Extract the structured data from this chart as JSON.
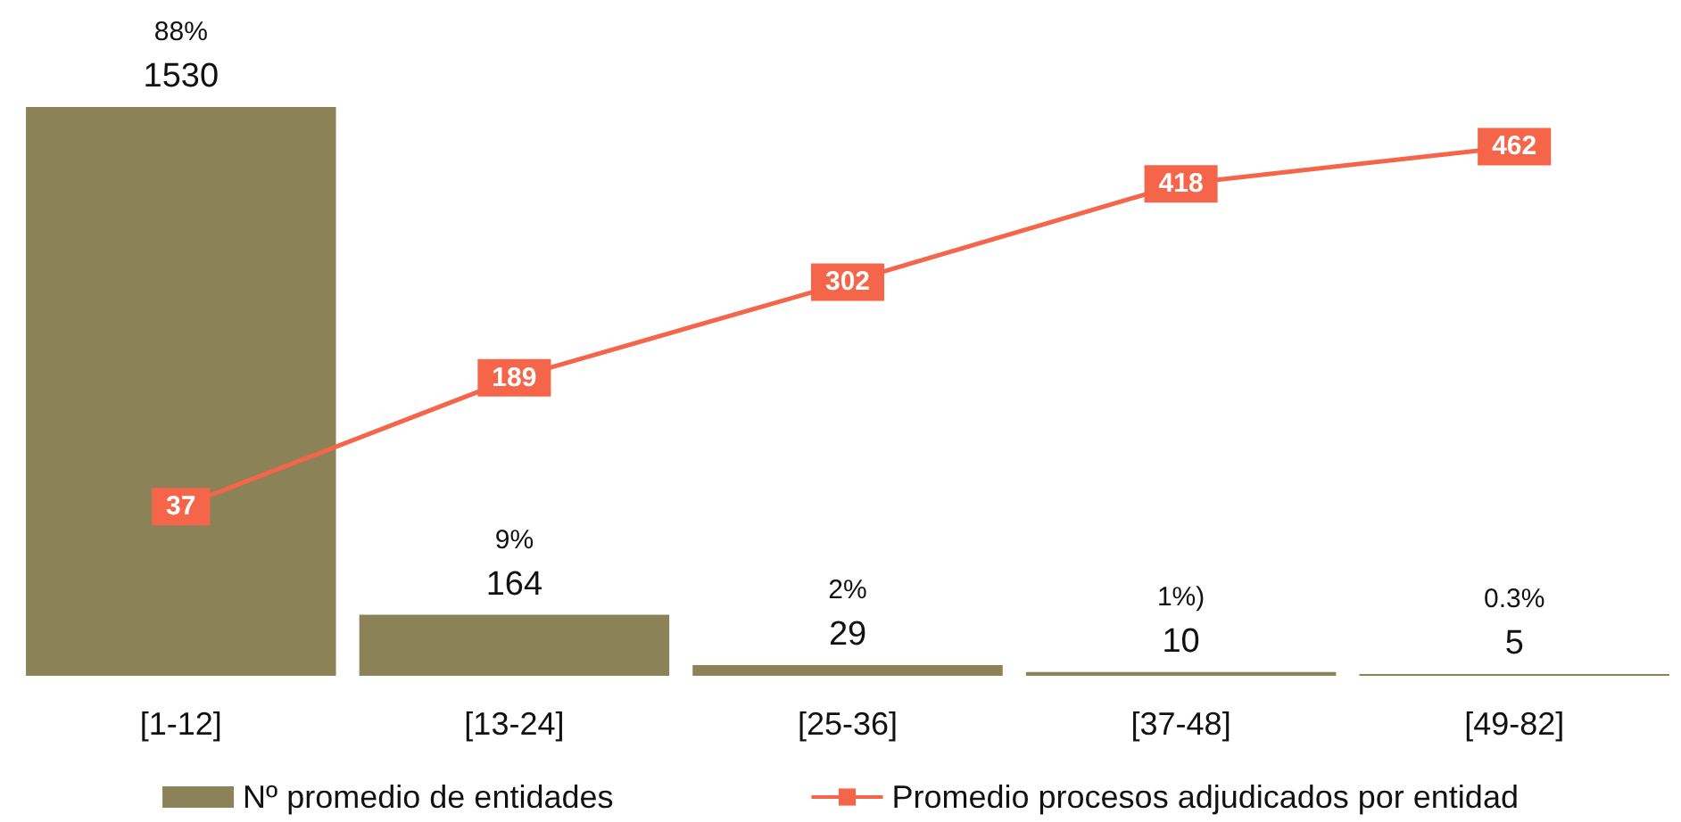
{
  "chart_data": {
    "type": "bar",
    "categories": [
      "[1-12]",
      "[13-24]",
      "[25-36]",
      "[37-48]",
      "[49-82]"
    ],
    "series": [
      {
        "name": "Nº promedio de entidades",
        "color": "#8c8257",
        "values": [
          1530,
          164,
          29,
          10,
          5
        ]
      },
      {
        "name": "Promedio procesos adjudicados por entidad",
        "type": "line",
        "axis": "y2",
        "color": "#f4654a",
        "values": [
          37,
          189,
          302,
          418,
          462
        ]
      }
    ],
    "annotations": [
      "88%",
      "9%",
      "2%",
      "1%)",
      "0.3%"
    ],
    "ylim": [
      0,
      1530
    ],
    "data_labels": true,
    "tick_labels": "x",
    "legend": "bottom",
    "marker": "square",
    "line_style": "solid"
  }
}
